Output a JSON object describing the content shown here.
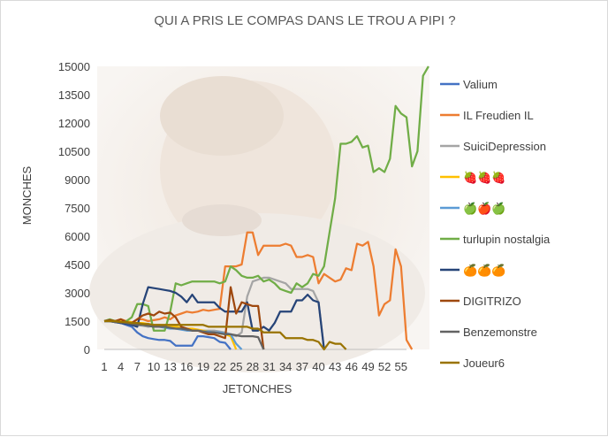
{
  "chart_data": {
    "type": "line",
    "title": "QUI A PRIS LE COMPAS DANS LE TROU A PIPI ?",
    "xlabel": "JETONCHES",
    "ylabel": "MONCHES",
    "ylim": [
      0,
      15000
    ],
    "yticks": [
      "0",
      "1500",
      "3000",
      "4500",
      "6000",
      "7500",
      "9000",
      "10500",
      "12000",
      "13500",
      "15000"
    ],
    "xticks": [
      "1",
      "4",
      "7",
      "10",
      "13",
      "16",
      "19",
      "22",
      "25",
      "28",
      "31",
      "34",
      "37",
      "40",
      "43",
      "46",
      "49",
      "52",
      "55"
    ],
    "xlim": [
      1,
      56
    ],
    "legend_position": "right",
    "series": [
      {
        "name": "Valium",
        "color": "#4472c4",
        "values": [
          1500,
          1500,
          1450,
          1400,
          1300,
          1200,
          900,
          700,
          600,
          550,
          500,
          500,
          450,
          200,
          200,
          200,
          200,
          700,
          700,
          650,
          600,
          400,
          350,
          0
        ]
      },
      {
        "name": "IL Freudien IL",
        "color": "#ed7d31",
        "values": [
          1500,
          1550,
          1500,
          1600,
          1500,
          1400,
          1600,
          1600,
          1500,
          1550,
          1600,
          1700,
          1600,
          1800,
          1900,
          2000,
          1950,
          2000,
          2100,
          2050,
          2100,
          2150,
          4400,
          4400,
          4400,
          4500,
          6200,
          6200,
          5000,
          5500,
          5500,
          5500,
          5500,
          5600,
          5500,
          4900,
          4900,
          5000,
          4900,
          3500,
          4000,
          3800,
          3600,
          3700,
          4300,
          4200,
          5600,
          5500,
          5700,
          4400,
          1800,
          2400,
          2600,
          5300,
          4400,
          500,
          0
        ]
      },
      {
        "name": "SuiciDepression",
        "color": "#a5a5a5",
        "values": [
          1500,
          1500,
          1500,
          1450,
          1400,
          1350,
          1300,
          1250,
          1200,
          1250,
          1300,
          1200,
          1200,
          1150,
          1100,
          1050,
          1000,
          1000,
          1000,
          1000,
          1000,
          950,
          900,
          800,
          700,
          900,
          2800,
          3600,
          3700,
          3800,
          3800,
          3700,
          3600,
          3500,
          3200,
          3200,
          3200,
          3200,
          3100,
          2500,
          0
        ]
      },
      {
        "name": "🍓🍓🍓",
        "color": "#ffc000",
        "values": [
          1500,
          1500,
          1500,
          1500,
          1500,
          1450,
          1400,
          1400,
          1350,
          1300,
          1300,
          1250,
          1200,
          1200,
          1150,
          1100,
          1100,
          1050,
          1000,
          950,
          900,
          850,
          800,
          700,
          0
        ]
      },
      {
        "name": "🍏🍎🍏",
        "color": "#5b9bd5",
        "values": [
          1500,
          1500,
          1450,
          1400,
          1400,
          1350,
          1300,
          1300,
          1250,
          1200,
          1200,
          1150,
          1100,
          1100,
          1050,
          1000,
          1000,
          1000,
          950,
          950,
          900,
          900,
          850,
          800,
          300,
          0
        ]
      },
      {
        "name": "turlupin nostalgia",
        "color": "#70ad47",
        "values": [
          1500,
          1600,
          1500,
          1400,
          1500,
          1700,
          2400,
          2400,
          2300,
          1000,
          1000,
          1000,
          2000,
          3500,
          3400,
          3500,
          3600,
          3600,
          3600,
          3600,
          3600,
          3500,
          3600,
          4400,
          4200,
          3900,
          3800,
          3800,
          3900,
          3600,
          3700,
          3500,
          3200,
          3100,
          3000,
          3500,
          3300,
          3500,
          4000,
          3900,
          4400,
          6200,
          8000,
          10900,
          10900,
          11000,
          11300,
          10700,
          10800,
          9400,
          9600,
          9400,
          10100,
          12900,
          12500,
          12300,
          9700,
          10500,
          14500,
          15000
        ]
      },
      {
        "name": "🍊🍊🍊",
        "color": "#264478",
        "values": [
          1500,
          1500,
          1450,
          1400,
          1350,
          1300,
          1200,
          2400,
          3300,
          3250,
          3200,
          3150,
          3100,
          3000,
          2800,
          2500,
          2900,
          2500,
          2500,
          2500,
          2500,
          2200,
          2000,
          2000,
          2000,
          2000,
          2500,
          1000,
          1000,
          1200,
          1000,
          1400,
          2000,
          2000,
          2000,
          2600,
          2600,
          2900,
          2600,
          2500,
          0
        ]
      },
      {
        "name": "DIGITRIZO",
        "color": "#9e480e",
        "values": [
          1500,
          1550,
          1500,
          1600,
          1450,
          1400,
          1600,
          1800,
          1900,
          1800,
          2000,
          1900,
          1950,
          1700,
          1200,
          1100,
          1000,
          1000,
          900,
          800,
          800,
          700,
          600,
          3300,
          1900,
          2500,
          2400,
          2300,
          2300,
          0
        ]
      },
      {
        "name": "Benzemonstre",
        "color": "#636363",
        "values": [
          1500,
          1500,
          1450,
          1450,
          1400,
          1350,
          1300,
          1300,
          1250,
          1200,
          1200,
          1200,
          1150,
          1100,
          1100,
          1050,
          1000,
          1000,
          950,
          900,
          900,
          850,
          800,
          800,
          750,
          700,
          700,
          700,
          650,
          0
        ]
      },
      {
        "name": "Joueur6",
        "color": "#997300",
        "values": [
          1500,
          1500,
          1500,
          1450,
          1450,
          1400,
          1400,
          1350,
          1350,
          1300,
          1300,
          1300,
          1300,
          1300,
          1300,
          1300,
          1300,
          1300,
          1300,
          1200,
          1200,
          1200,
          1200,
          1200,
          1200,
          1200,
          1200,
          1100,
          1100,
          900,
          900,
          900,
          900,
          600,
          600,
          600,
          600,
          500,
          500,
          400,
          0,
          400,
          300,
          300,
          0
        ]
      }
    ]
  }
}
